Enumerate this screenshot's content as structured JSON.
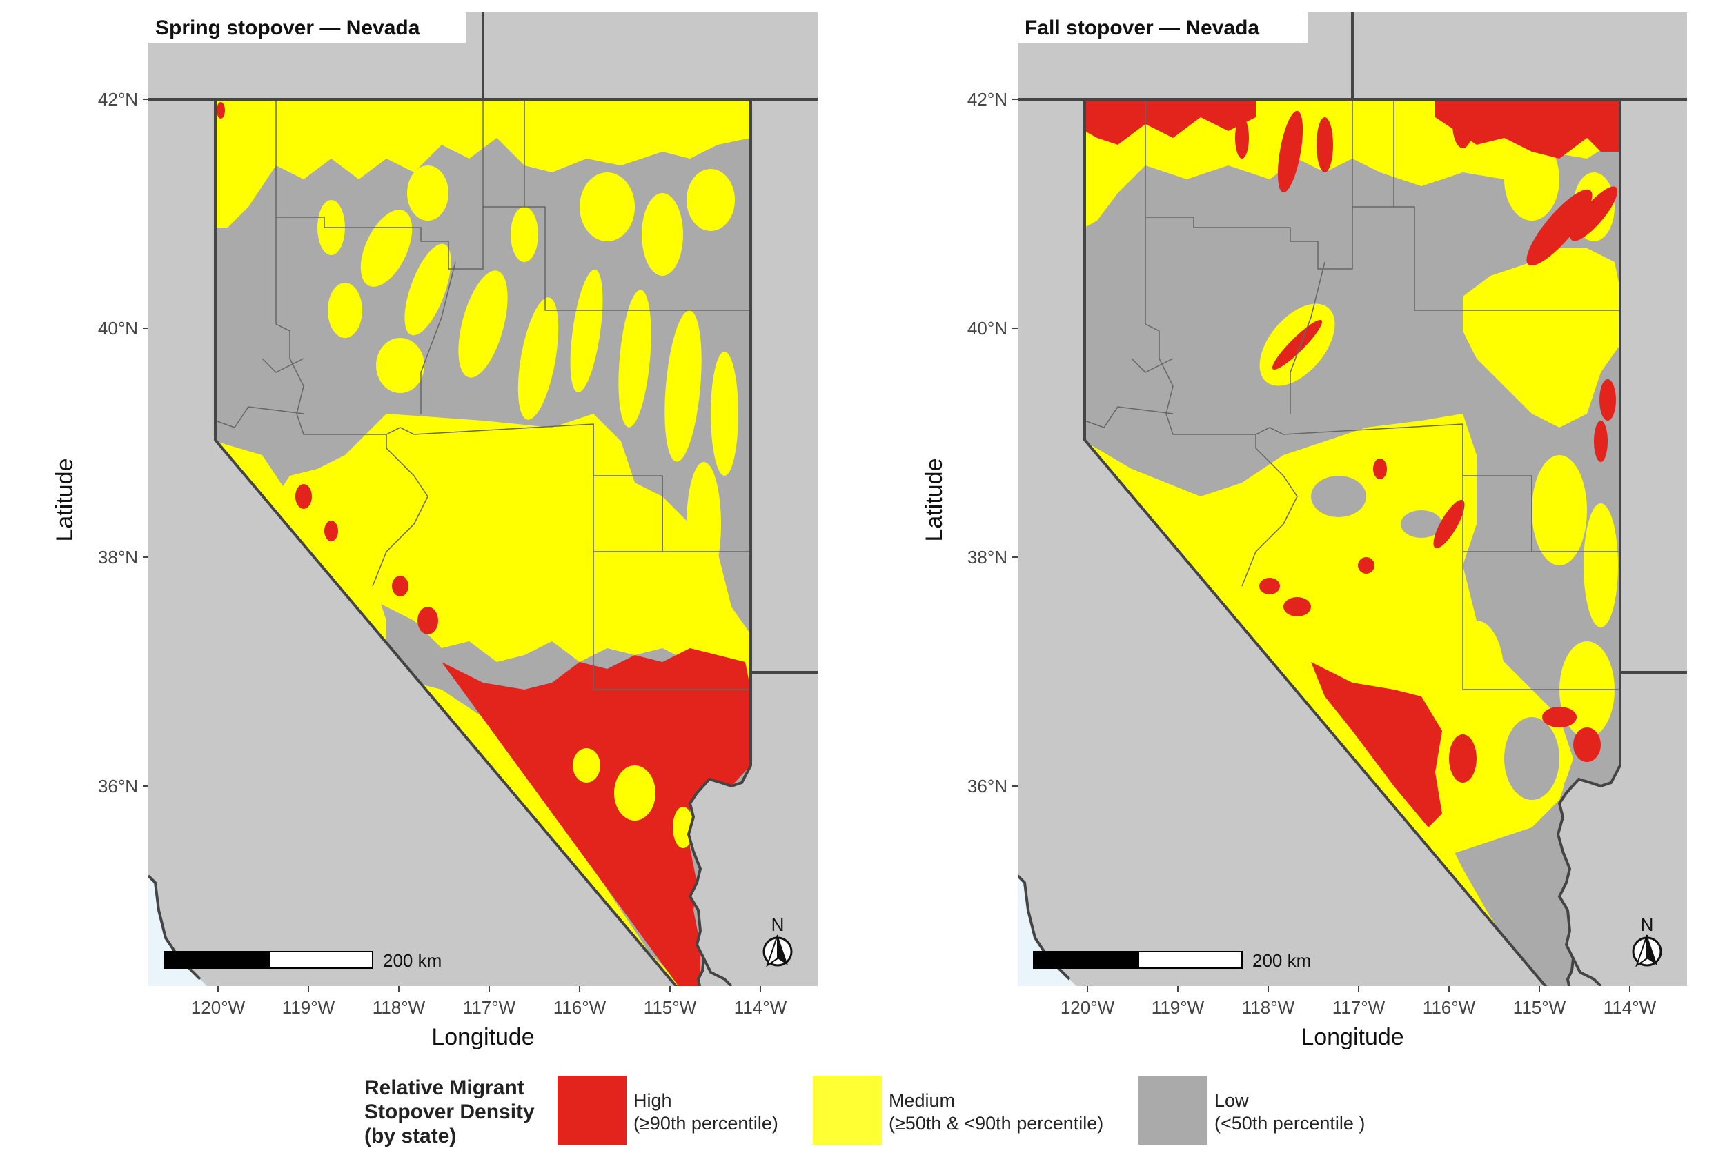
{
  "panels": [
    {
      "title": "Spring stopover — Nevada",
      "scalebar_label": "200 km",
      "north_label": "N",
      "xlabel": "Longitude",
      "ylabel": "Latitude",
      "xticks": [
        "120°W",
        "119°W",
        "118°W",
        "117°W",
        "116°W",
        "115°W",
        "114°W"
      ],
      "yticks": [
        "42°N",
        "40°N",
        "38°N",
        "36°N"
      ]
    },
    {
      "title": "Fall stopover — Nevada",
      "scalebar_label": "200 km",
      "north_label": "N",
      "xlabel": "Longitude",
      "ylabel": "Latitude",
      "xticks": [
        "120°W",
        "119°W",
        "118°W",
        "117°W",
        "116°W",
        "115°W",
        "114°W"
      ],
      "yticks": [
        "42°N",
        "40°N",
        "38°N",
        "36°N"
      ]
    }
  ],
  "legend": {
    "title": "Relative Migrant\nStopover Density\n(by state)",
    "items": [
      {
        "label": "High\n(≥90th percentile)",
        "color": "#e3241c"
      },
      {
        "label": "Medium\n(≥50th & <90th percentile)",
        "color": "#ffff33"
      },
      {
        "label": "Low\n(<50th percentile )",
        "color": "#aaaaaa"
      }
    ]
  },
  "colors": {
    "panel_bg": "#c8c8c8",
    "ocean": "#eaf4fb",
    "state_border": "#444444",
    "county_border": "#666666",
    "high": "#e3241c",
    "medium": "#ffff00",
    "low": "#aaaaaa"
  }
}
